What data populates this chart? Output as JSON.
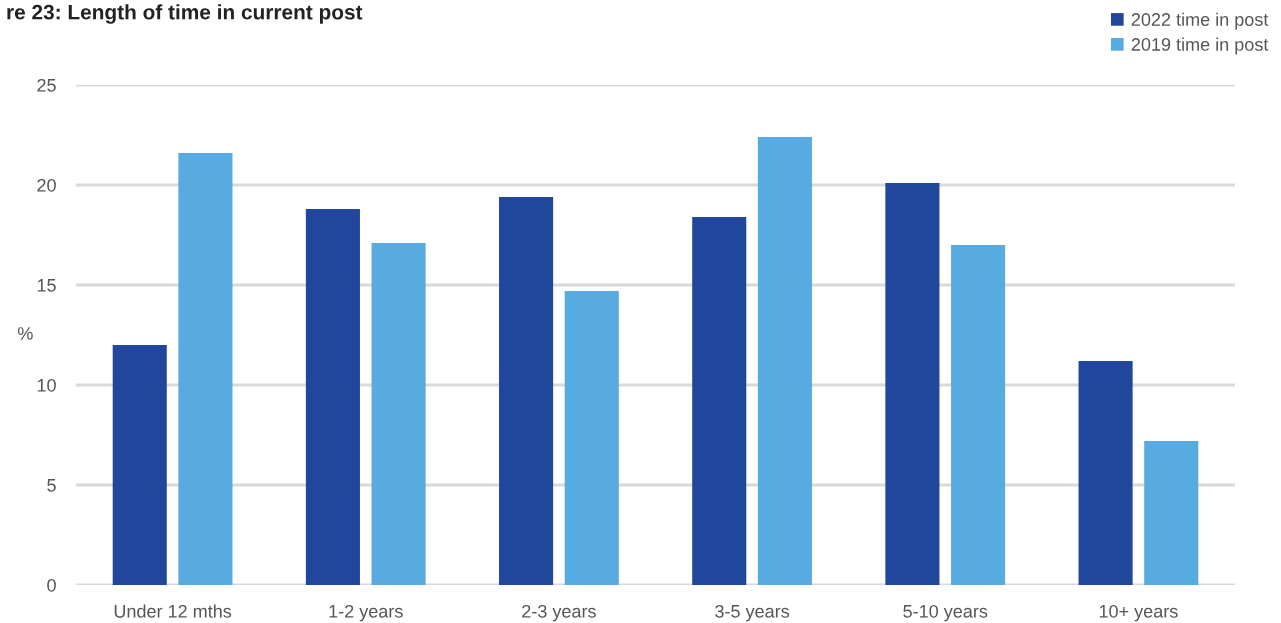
{
  "chart_data": {
    "type": "bar",
    "title": "re 23: Length of time in current post",
    "ylabel": "%",
    "categories": [
      "Under 12 mths",
      "1-2 years",
      "2-3 years",
      "3-5 years",
      "5-10 years",
      "10+ years"
    ],
    "series": [
      {
        "name": "2022 time in post",
        "color": "#20479c",
        "values": [
          12.0,
          18.8,
          19.4,
          18.4,
          20.1,
          11.2
        ]
      },
      {
        "name": "2019 time in post",
        "color": "#57abe0",
        "values": [
          21.6,
          17.1,
          14.7,
          22.4,
          17.0,
          7.2
        ]
      }
    ],
    "ylim": [
      0,
      25
    ],
    "yticks": [
      0,
      5,
      10,
      15,
      20,
      25
    ],
    "grid": "y",
    "legend": "top right"
  }
}
